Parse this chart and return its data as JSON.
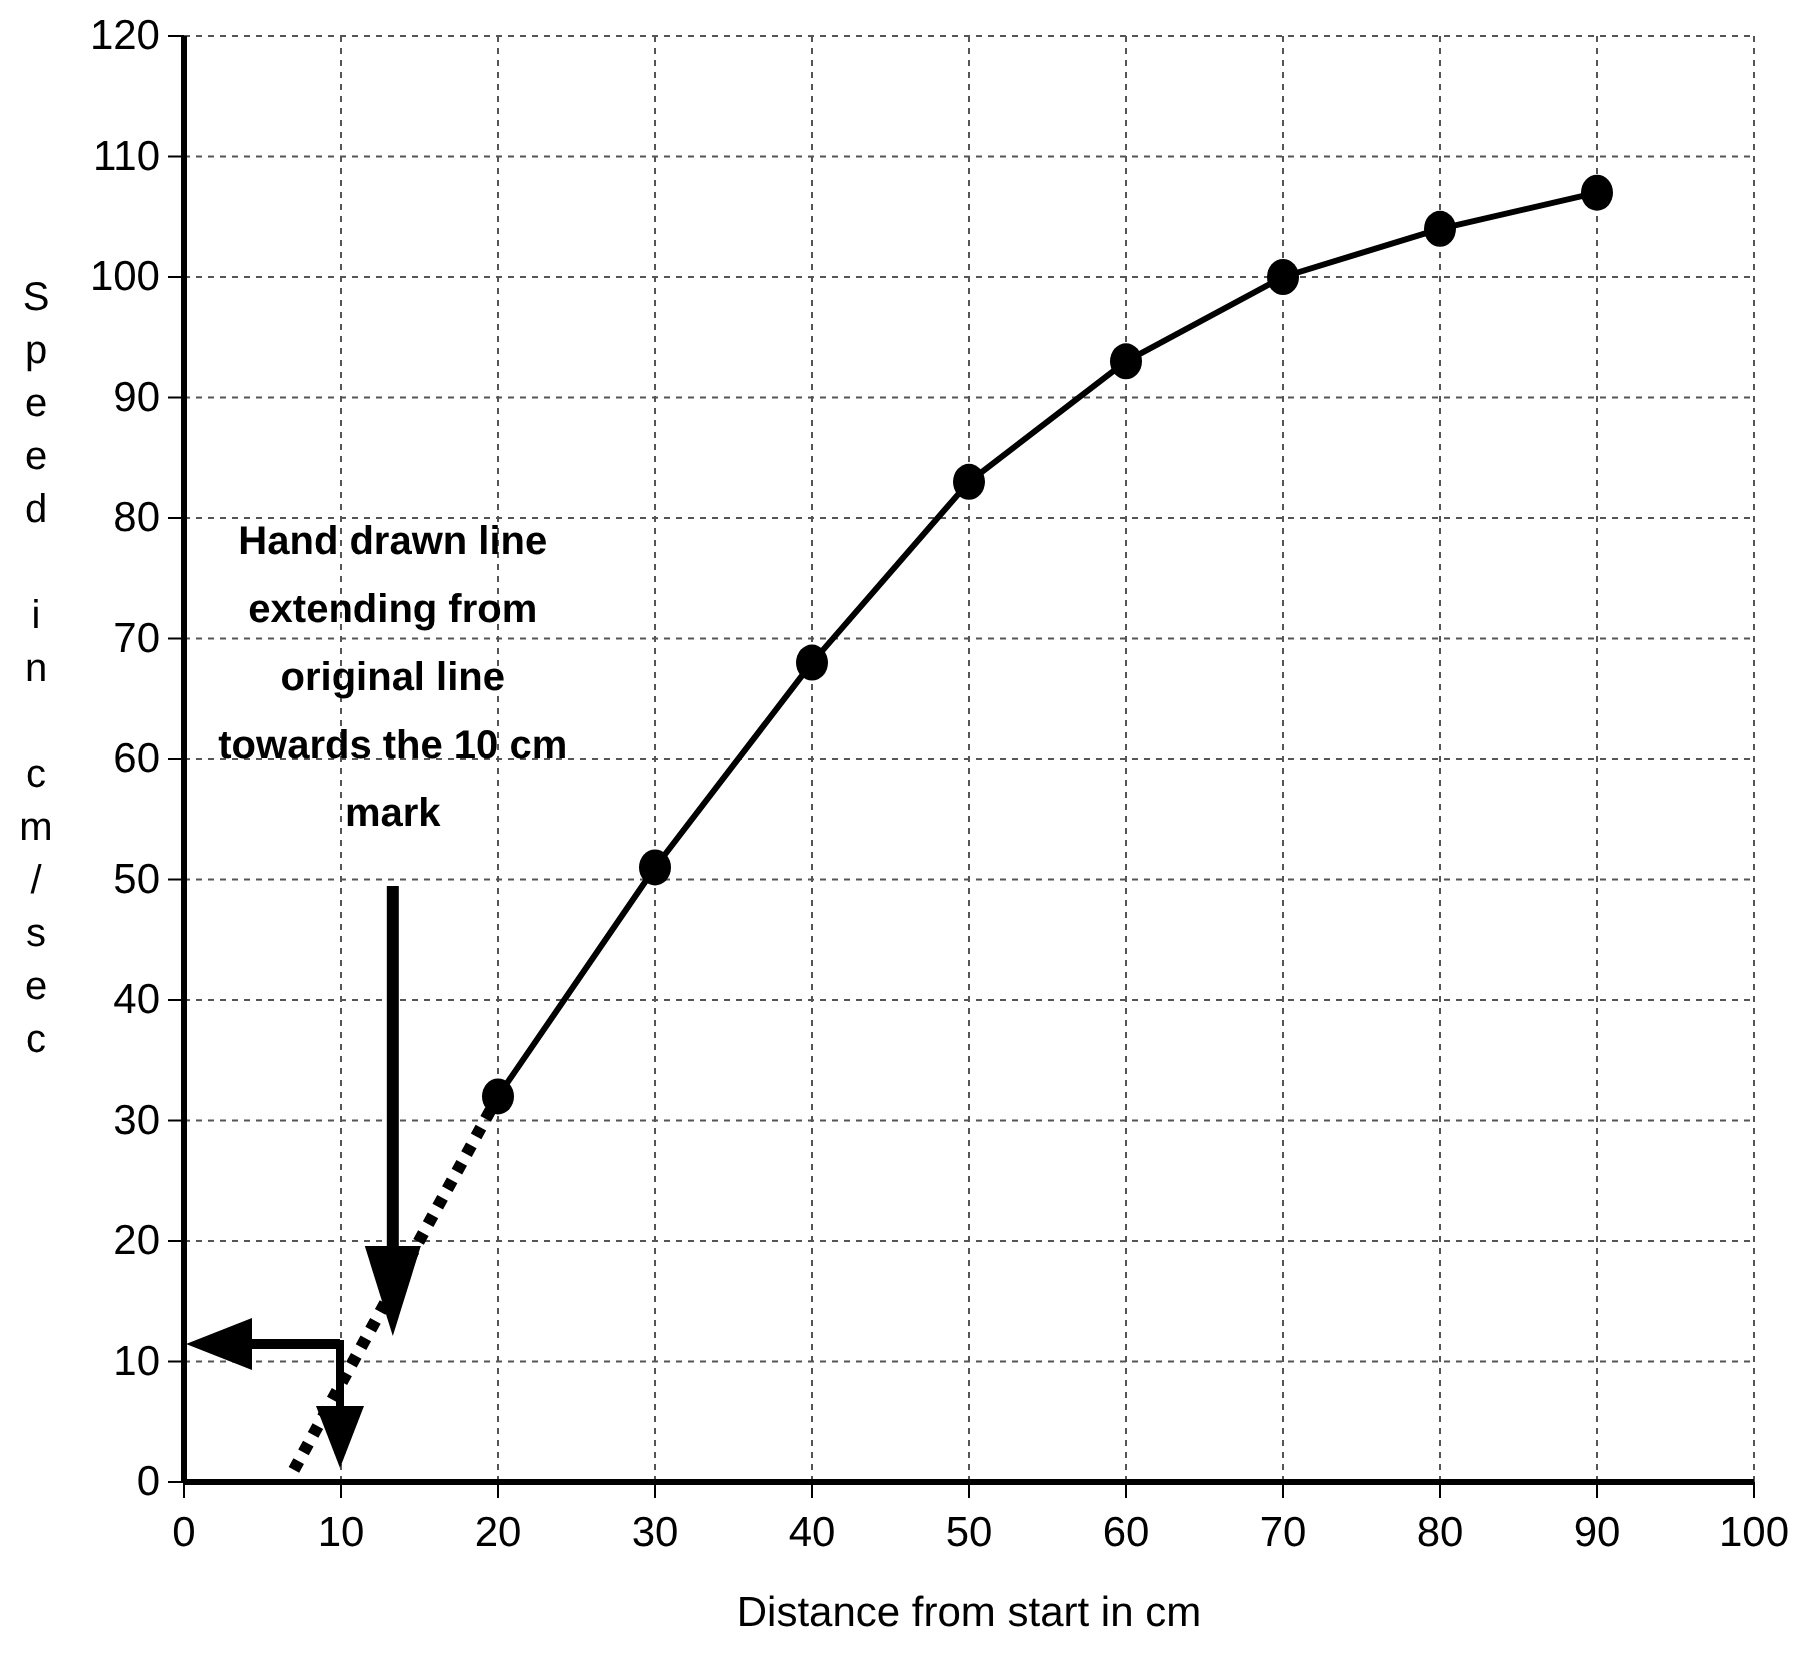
{
  "chart_data": {
    "type": "line",
    "xlabel": "Distance from start in cm",
    "ylabel": "Speed in cm/sec",
    "xlim": [
      0,
      100
    ],
    "xticks": [
      0,
      10,
      20,
      30,
      40,
      50,
      60,
      70,
      80,
      90,
      100
    ],
    "ylim": [
      0,
      120
    ],
    "yticks": [
      0,
      10,
      20,
      30,
      40,
      50,
      60,
      70,
      80,
      90,
      100,
      110,
      120
    ],
    "grid": true,
    "series": [
      {
        "color": "#000000",
        "x": [
          20,
          30,
          40,
          50,
          60,
          70,
          80,
          90
        ],
        "values": [
          32,
          51,
          68,
          83,
          93,
          100,
          104,
          107
        ],
        "marker": "circle",
        "line_style": "solid"
      },
      {
        "color": "#000000",
        "x": [
          7,
          20
        ],
        "values": [
          1,
          32
        ],
        "marker": "none",
        "line_style": "dotted"
      }
    ],
    "annotations": [
      "Hand drawn line\nextending from\noriginal line\ntowards the 10 cm\nmark"
    ]
  }
}
